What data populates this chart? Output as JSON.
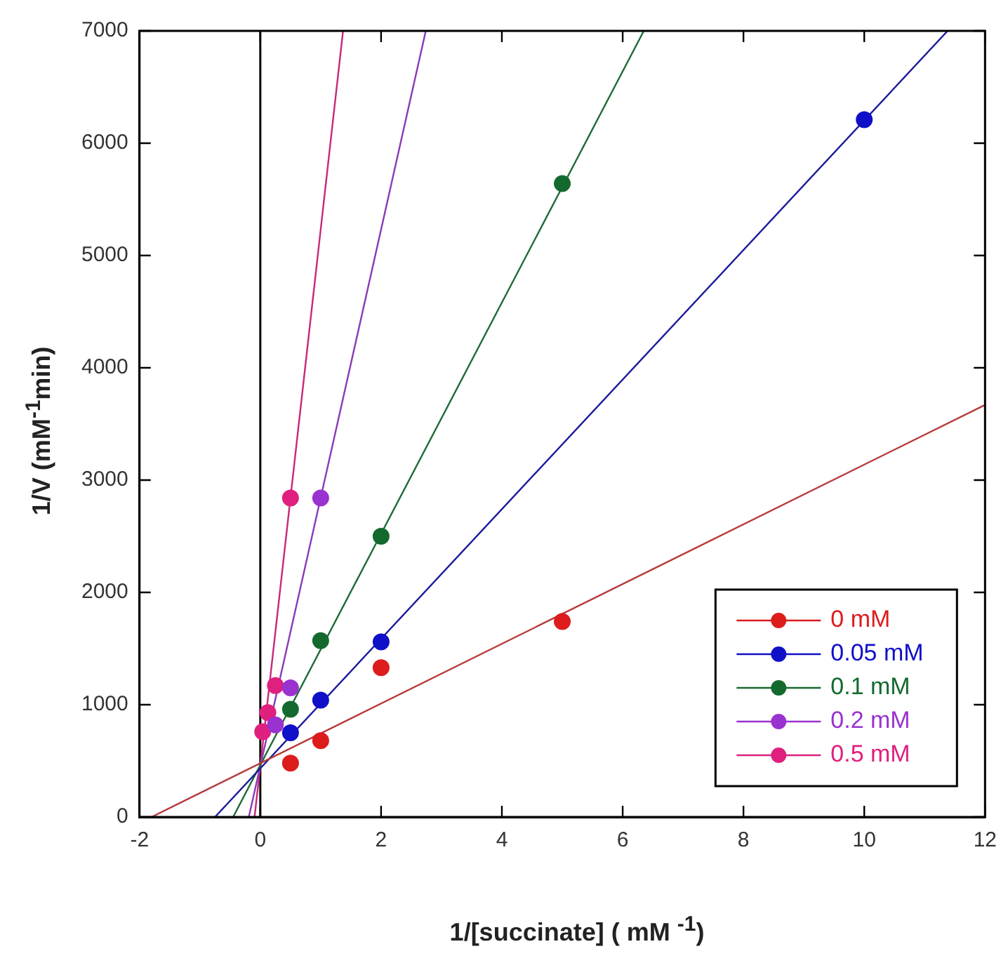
{
  "chart_data": {
    "type": "scatter",
    "xlabel": "1/[succinate] ( mM $^{-1}$)",
    "ylabel": "1/V (mM$^{-1}$min)",
    "xlim": [
      -2,
      12
    ],
    "xticks": [
      -2,
      0,
      2,
      4,
      6,
      8,
      10,
      12
    ],
    "ylim": [
      0,
      7000
    ],
    "yticks": [
      0,
      1000,
      2000,
      3000,
      4000,
      5000,
      6000,
      7000
    ],
    "marker": "circle",
    "line_style": "solid",
    "legend": "bottom right",
    "ref_lines": [
      {
        "axis": "x",
        "value": 0,
        "color": "#000000"
      }
    ],
    "series": [
      {
        "name": "0 mM",
        "color": "#dd1c1c",
        "x": [
          0.5,
          1,
          2,
          5
        ],
        "values": [
          480,
          680,
          1330,
          1740
        ]
      },
      {
        "name": "0.05 mM",
        "color": "#1010c8",
        "x": [
          0.5,
          1,
          2,
          10
        ],
        "values": [
          750,
          1040,
          1560,
          6210
        ]
      },
      {
        "name": "0.1 mM",
        "color": "#146a2e",
        "x": [
          0.5,
          1,
          2,
          5
        ],
        "values": [
          960,
          1570,
          2500,
          5640
        ]
      },
      {
        "name": "0.2 mM",
        "color": "#9a32d0",
        "x": [
          0.25,
          0.5,
          1
        ],
        "values": [
          820,
          1150,
          2840
        ]
      },
      {
        "name": "0.5 mM",
        "color": "#e0207f",
        "x": [
          0.04,
          0.125,
          0.25,
          0.5
        ],
        "values": [
          760,
          930,
          1170,
          2840
        ]
      },
      {
        "type": "line",
        "marker": "none",
        "color": "#b83a3a",
        "x": [
          -1.8,
          12
        ],
        "values": [
          0,
          3670
        ]
      },
      {
        "type": "line",
        "marker": "none",
        "color": "#1a1a9a",
        "x": [
          -0.75,
          11.38
        ],
        "values": [
          0,
          7000
        ]
      },
      {
        "type": "line",
        "marker": "none",
        "color": "#1f6a35",
        "x": [
          -0.45,
          6.35
        ],
        "values": [
          0,
          7000
        ]
      },
      {
        "type": "line",
        "marker": "none",
        "color": "#8a3ab8",
        "x": [
          -0.19,
          2.74
        ],
        "values": [
          0,
          7000
        ]
      },
      {
        "type": "line",
        "marker": "none",
        "color": "#c8287a",
        "x": [
          -0.095,
          1.37
        ],
        "values": [
          0,
          7000
        ]
      }
    ]
  }
}
